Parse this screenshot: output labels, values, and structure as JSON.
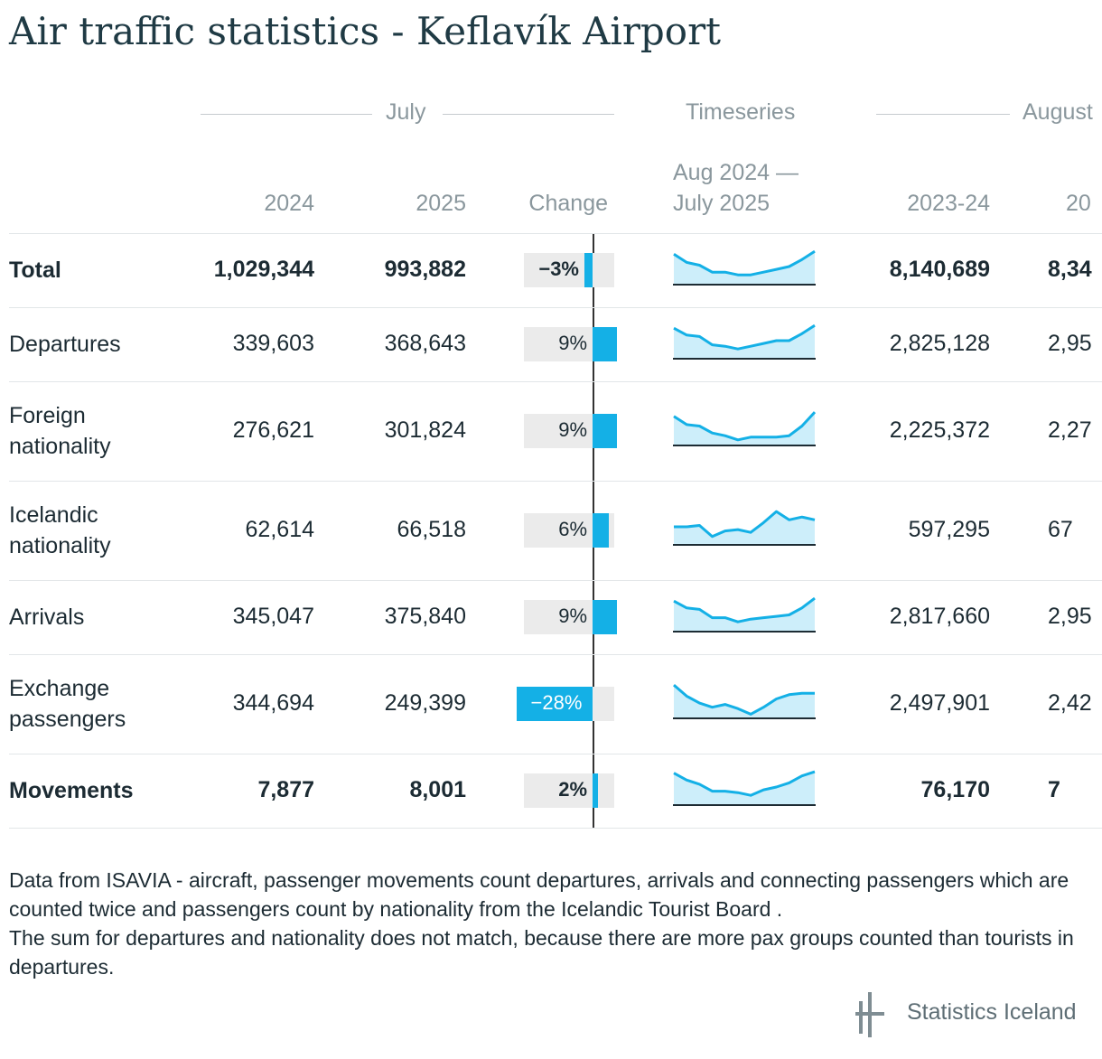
{
  "title": "Air traffic statistics - Keflavík Airport",
  "groups": {
    "july": "July",
    "timeseries": "Timeseries",
    "august": "August"
  },
  "columns": {
    "y2024": "2024",
    "y2025": "2025",
    "change": "Change",
    "ts_range_1": "Aug 2024 —",
    "ts_range_2": "July 2025",
    "p1": "2023-24",
    "p2": "20"
  },
  "colors": {
    "accent": "#14b0e6",
    "spark_fill": "#cdeefa",
    "bar_bg": "#ebebeb"
  },
  "rows": [
    {
      "label": "Total",
      "bold": true,
      "v2024": "1,029,344",
      "v2025": "993,882",
      "change_label": "−3%",
      "change_pct": -3,
      "p1": "8,140,689",
      "p2": "8,34",
      "spark": [
        92,
        86,
        84,
        79,
        79,
        77,
        77,
        79,
        81,
        83,
        88,
        94
      ]
    },
    {
      "label": "Departures",
      "bold": false,
      "v2024": "339,603",
      "v2025": "368,643",
      "change_label": "9%",
      "change_pct": 9,
      "p1": "2,825,128",
      "p2": "2,95",
      "spark": [
        92,
        87,
        86,
        80,
        79,
        77,
        79,
        81,
        83,
        83,
        88,
        94
      ]
    },
    {
      "label": "Foreign nationality",
      "bold": false,
      "v2024": "276,621",
      "v2025": "301,824",
      "change_label": "9%",
      "change_pct": 9,
      "p1": "2,225,372",
      "p2": "2,27",
      "spark": [
        91,
        85,
        84,
        79,
        77,
        74,
        76,
        76,
        76,
        77,
        84,
        94
      ]
    },
    {
      "label": "Icelandic nationality",
      "bold": false,
      "v2024": "62,614",
      "v2025": "66,518",
      "change_label": "6%",
      "change_pct": 6,
      "p1": "597,295",
      "p2": "67",
      "spark": [
        83,
        83,
        84,
        76,
        80,
        81,
        79,
        86,
        94,
        88,
        90,
        88
      ]
    },
    {
      "label": "Arrivals",
      "bold": false,
      "v2024": "345,047",
      "v2025": "375,840",
      "change_label": "9%",
      "change_pct": 9,
      "p1": "2,817,660",
      "p2": "2,95",
      "spark": [
        92,
        87,
        86,
        80,
        80,
        77,
        79,
        80,
        81,
        82,
        87,
        94
      ]
    },
    {
      "label": "Exchange passengers",
      "bold": false,
      "v2024": "344,694",
      "v2025": "249,399",
      "change_label": "−28%",
      "change_pct": -28,
      "p1": "2,497,901",
      "p2": "2,42",
      "spark": [
        94,
        86,
        81,
        78,
        80,
        77,
        73,
        78,
        84,
        87,
        88,
        88
      ]
    },
    {
      "label": "Movements",
      "bold": true,
      "v2024": "7,877",
      "v2025": "8,001",
      "change_label": "2%",
      "change_pct": 2,
      "p1": "76,170",
      "p2": "7",
      "spark": [
        93,
        88,
        85,
        80,
        80,
        79,
        77,
        81,
        83,
        86,
        91,
        94
      ]
    }
  ],
  "footnote": {
    "line1": "Data from ISAVIA - aircraft, passenger movements count departures, arrivals and connecting passengers which are counted twice and passengers count by nationality from the Icelandic Tourist Board .",
    "line2": "The sum for departures and nationality does not match, because there are more pax groups counted than tourists in departures."
  },
  "logo_text": "Statistics Iceland",
  "chart_data": {
    "type": "table",
    "title": "Air traffic statistics - Keflavík Airport",
    "columns": [
      "2024",
      "2025",
      "Change",
      "Aug 2024 — July 2025",
      "2023-24"
    ],
    "row_labels": [
      "Total",
      "Departures",
      "Foreign nationality",
      "Icelandic nationality",
      "Arrivals",
      "Exchange passengers",
      "Movements"
    ],
    "july_2024": [
      1029344,
      339603,
      276621,
      62614,
      345047,
      344694,
      7877
    ],
    "july_2025": [
      993882,
      368643,
      301824,
      66518,
      375840,
      249399,
      8001
    ],
    "change_pct": [
      -3,
      9,
      9,
      6,
      9,
      -28,
      2
    ],
    "aug_2023_24": [
      8140689,
      2825128,
      2225372,
      597295,
      2817660,
      2497901,
      76170
    ]
  }
}
